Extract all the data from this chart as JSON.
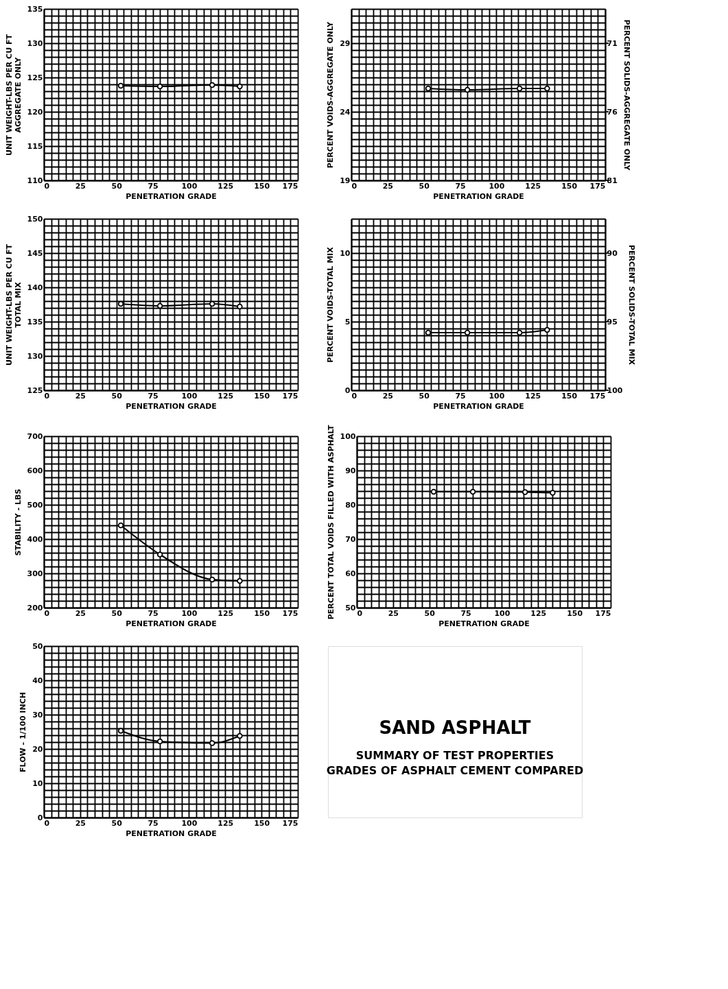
{
  "chart_data": [
    {
      "type": "line",
      "xlabel": "PENETRATION GRADE",
      "ylabel": "UNIT WEIGHT-LBS PER CU FT\nAGGREGATE ONLY",
      "grid": true,
      "marker": "circle",
      "line_style": "solid",
      "xlim": [
        0,
        175
      ],
      "ylim": [
        110,
        135
      ],
      "xticks": [
        0,
        {
          "value": 5,
          "label": null
        },
        {
          "value": 10,
          "label": null
        },
        {
          "value": 15,
          "label": null
        },
        {
          "value": 20,
          "label": null
        },
        25,
        {
          "value": 30,
          "label": null
        },
        {
          "value": 35,
          "label": null
        },
        {
          "value": 40,
          "label": null
        },
        {
          "value": 45,
          "label": null
        },
        50,
        {
          "value": 55,
          "label": null
        },
        {
          "value": 60,
          "label": null
        },
        {
          "value": 65,
          "label": null
        },
        {
          "value": 70,
          "label": null
        },
        75,
        {
          "value": 80,
          "label": null
        },
        {
          "value": 85,
          "label": null
        },
        {
          "value": 90,
          "label": null
        },
        {
          "value": 95,
          "label": null
        },
        100,
        {
          "value": 105,
          "label": null
        },
        {
          "value": 110,
          "label": null
        },
        {
          "value": 115,
          "label": null
        },
        {
          "value": 120,
          "label": null
        },
        125,
        {
          "value": 130,
          "label": null
        },
        {
          "value": 135,
          "label": null
        },
        {
          "value": 140,
          "label": null
        },
        {
          "value": 145,
          "label": null
        },
        150,
        {
          "value": 155,
          "label": null
        },
        {
          "value": 160,
          "label": null
        },
        {
          "value": 165,
          "label": null
        },
        {
          "value": 170,
          "label": null
        },
        175
      ],
      "yticks": [
        110,
        {
          "value": 111,
          "label": null
        },
        {
          "value": 112,
          "label": null
        },
        {
          "value": 113,
          "label": null
        },
        {
          "value": 114,
          "label": null
        },
        115,
        {
          "value": 116,
          "label": null
        },
        {
          "value": 117,
          "label": null
        },
        {
          "value": 118,
          "label": null
        },
        {
          "value": 119,
          "label": null
        },
        120,
        {
          "value": 121,
          "label": null
        },
        {
          "value": 122,
          "label": null
        },
        {
          "value": 123,
          "label": null
        },
        {
          "value": 124,
          "label": null
        },
        125,
        {
          "value": 126,
          "label": null
        },
        {
          "value": 127,
          "label": null
        },
        {
          "value": 128,
          "label": null
        },
        {
          "value": 129,
          "label": null
        },
        130,
        {
          "value": 131,
          "label": null
        },
        {
          "value": 132,
          "label": null
        },
        {
          "value": 133,
          "label": null
        },
        {
          "value": 134,
          "label": null
        },
        135
      ],
      "x": [
        53,
        80,
        116,
        135
      ],
      "series": [
        {
          "color": "#000000",
          "values": [
            123.8,
            123.7,
            123.9,
            123.7
          ]
        }
      ]
    },
    {
      "type": "line",
      "xlabel": "PENETRATION GRADE",
      "ylabel": "PERCENT VOIDS-AGGREGATE ONLY",
      "y2label": "PERCENT SOLIDS-AGGREGATE ONLY",
      "grid": true,
      "marker": "circle",
      "line_style": "solid",
      "xlim": [
        0,
        175
      ],
      "ylim": [
        19,
        31.5
      ],
      "y2lim": [
        81,
        68.5
      ],
      "y2ticks": [
        81,
        76,
        71
      ],
      "xticks": [
        0,
        {
          "value": 5,
          "label": null
        },
        {
          "value": 10,
          "label": null
        },
        {
          "value": 15,
          "label": null
        },
        {
          "value": 20,
          "label": null
        },
        25,
        {
          "value": 30,
          "label": null
        },
        {
          "value": 35,
          "label": null
        },
        {
          "value": 40,
          "label": null
        },
        {
          "value": 45,
          "label": null
        },
        50,
        {
          "value": 55,
          "label": null
        },
        {
          "value": 60,
          "label": null
        },
        {
          "value": 65,
          "label": null
        },
        {
          "value": 70,
          "label": null
        },
        75,
        {
          "value": 80,
          "label": null
        },
        {
          "value": 85,
          "label": null
        },
        {
          "value": 90,
          "label": null
        },
        {
          "value": 95,
          "label": null
        },
        100,
        {
          "value": 105,
          "label": null
        },
        {
          "value": 110,
          "label": null
        },
        {
          "value": 115,
          "label": null
        },
        {
          "value": 120,
          "label": null
        },
        125,
        {
          "value": 130,
          "label": null
        },
        {
          "value": 135,
          "label": null
        },
        {
          "value": 140,
          "label": null
        },
        {
          "value": 145,
          "label": null
        },
        150,
        {
          "value": 155,
          "label": null
        },
        {
          "value": 160,
          "label": null
        },
        {
          "value": 165,
          "label": null
        },
        {
          "value": 170,
          "label": null
        },
        175
      ],
      "yticks": [
        19,
        {
          "value": 19.5,
          "label": null
        },
        {
          "value": 20,
          "label": null
        },
        {
          "value": 20.5,
          "label": null
        },
        {
          "value": 21,
          "label": null
        },
        {
          "value": 21.5,
          "label": null
        },
        {
          "value": 22,
          "label": null
        },
        {
          "value": 22.5,
          "label": null
        },
        {
          "value": 23,
          "label": null
        },
        {
          "value": 23.5,
          "label": null
        },
        24,
        {
          "value": 24.5,
          "label": null
        },
        {
          "value": 25,
          "label": null
        },
        {
          "value": 25.5,
          "label": null
        },
        {
          "value": 26,
          "label": null
        },
        {
          "value": 26.5,
          "label": null
        },
        {
          "value": 27,
          "label": null
        },
        {
          "value": 27.5,
          "label": null
        },
        {
          "value": 28,
          "label": null
        },
        {
          "value": 28.5,
          "label": null
        },
        29,
        {
          "value": 29.5,
          "label": null
        },
        {
          "value": 30,
          "label": null
        },
        {
          "value": 30.5,
          "label": null
        },
        {
          "value": 31,
          "label": null
        },
        {
          "value": 31.5,
          "label": null
        }
      ],
      "x": [
        53,
        80,
        116,
        135
      ],
      "series": [
        {
          "color": "#000000",
          "values": [
            25.7,
            25.6,
            25.7,
            25.7
          ]
        }
      ]
    },
    {
      "type": "line",
      "xlabel": "PENETRATION GRADE",
      "ylabel": "UNIT WEIGHT-LBS PER CU FT\nTOTAL MIX",
      "grid": true,
      "marker": "circle",
      "line_style": "solid",
      "xlim": [
        0,
        175
      ],
      "ylim": [
        125,
        150
      ],
      "xticks": [
        0,
        {
          "value": 5,
          "label": null
        },
        {
          "value": 10,
          "label": null
        },
        {
          "value": 15,
          "label": null
        },
        {
          "value": 20,
          "label": null
        },
        25,
        {
          "value": 30,
          "label": null
        },
        {
          "value": 35,
          "label": null
        },
        {
          "value": 40,
          "label": null
        },
        {
          "value": 45,
          "label": null
        },
        50,
        {
          "value": 55,
          "label": null
        },
        {
          "value": 60,
          "label": null
        },
        {
          "value": 65,
          "label": null
        },
        {
          "value": 70,
          "label": null
        },
        75,
        {
          "value": 80,
          "label": null
        },
        {
          "value": 85,
          "label": null
        },
        {
          "value": 90,
          "label": null
        },
        {
          "value": 95,
          "label": null
        },
        100,
        {
          "value": 105,
          "label": null
        },
        {
          "value": 110,
          "label": null
        },
        {
          "value": 115,
          "label": null
        },
        {
          "value": 120,
          "label": null
        },
        125,
        {
          "value": 130,
          "label": null
        },
        {
          "value": 135,
          "label": null
        },
        {
          "value": 140,
          "label": null
        },
        {
          "value": 145,
          "label": null
        },
        150,
        {
          "value": 155,
          "label": null
        },
        {
          "value": 160,
          "label": null
        },
        {
          "value": 165,
          "label": null
        },
        {
          "value": 170,
          "label": null
        },
        175
      ],
      "yticks": [
        125,
        {
          "value": 126,
          "label": null
        },
        {
          "value": 127,
          "label": null
        },
        {
          "value": 128,
          "label": null
        },
        {
          "value": 129,
          "label": null
        },
        130,
        {
          "value": 131,
          "label": null
        },
        {
          "value": 132,
          "label": null
        },
        {
          "value": 133,
          "label": null
        },
        {
          "value": 134,
          "label": null
        },
        135,
        {
          "value": 136,
          "label": null
        },
        {
          "value": 137,
          "label": null
        },
        {
          "value": 138,
          "label": null
        },
        {
          "value": 139,
          "label": null
        },
        140,
        {
          "value": 141,
          "label": null
        },
        {
          "value": 142,
          "label": null
        },
        {
          "value": 143,
          "label": null
        },
        {
          "value": 144,
          "label": null
        },
        145,
        {
          "value": 146,
          "label": null
        },
        {
          "value": 147,
          "label": null
        },
        {
          "value": 148,
          "label": null
        },
        {
          "value": 149,
          "label": null
        },
        150
      ],
      "x": [
        53,
        80,
        116,
        135
      ],
      "series": [
        {
          "color": "#000000",
          "values": [
            137.6,
            137.3,
            137.6,
            137.2
          ]
        }
      ]
    },
    {
      "type": "line",
      "xlabel": "PENETRATION GRADE",
      "ylabel": "PERCENT VOIDS-TOTAL MIX",
      "y2label": "PERCENT SOLIDS-TOTAL MIX",
      "grid": true,
      "marker": "circle",
      "line_style": "solid",
      "xlim": [
        0,
        175
      ],
      "ylim": [
        0,
        12.5
      ],
      "y2lim": [
        100,
        87.5
      ],
      "y2ticks": [
        100,
        95,
        90
      ],
      "xticks": [
        0,
        {
          "value": 5,
          "label": null
        },
        {
          "value": 10,
          "label": null
        },
        {
          "value": 15,
          "label": null
        },
        {
          "value": 20,
          "label": null
        },
        25,
        {
          "value": 30,
          "label": null
        },
        {
          "value": 35,
          "label": null
        },
        {
          "value": 40,
          "label": null
        },
        {
          "value": 45,
          "label": null
        },
        50,
        {
          "value": 55,
          "label": null
        },
        {
          "value": 60,
          "label": null
        },
        {
          "value": 65,
          "label": null
        },
        {
          "value": 70,
          "label": null
        },
        75,
        {
          "value": 80,
          "label": null
        },
        {
          "value": 85,
          "label": null
        },
        {
          "value": 90,
          "label": null
        },
        {
          "value": 95,
          "label": null
        },
        100,
        {
          "value": 105,
          "label": null
        },
        {
          "value": 110,
          "label": null
        },
        {
          "value": 115,
          "label": null
        },
        {
          "value": 120,
          "label": null
        },
        125,
        {
          "value": 130,
          "label": null
        },
        {
          "value": 135,
          "label": null
        },
        {
          "value": 140,
          "label": null
        },
        {
          "value": 145,
          "label": null
        },
        150,
        {
          "value": 155,
          "label": null
        },
        {
          "value": 160,
          "label": null
        },
        {
          "value": 165,
          "label": null
        },
        {
          "value": 170,
          "label": null
        },
        175
      ],
      "yticks": [
        0,
        {
          "value": 0.5,
          "label": null
        },
        {
          "value": 1,
          "label": null
        },
        {
          "value": 1.5,
          "label": null
        },
        {
          "value": 2,
          "label": null
        },
        {
          "value": 2.5,
          "label": null
        },
        {
          "value": 3,
          "label": null
        },
        {
          "value": 3.5,
          "label": null
        },
        {
          "value": 4,
          "label": null
        },
        {
          "value": 4.5,
          "label": null
        },
        5,
        {
          "value": 5.5,
          "label": null
        },
        {
          "value": 6,
          "label": null
        },
        {
          "value": 6.5,
          "label": null
        },
        {
          "value": 7,
          "label": null
        },
        {
          "value": 7.5,
          "label": null
        },
        {
          "value": 8,
          "label": null
        },
        {
          "value": 8.5,
          "label": null
        },
        {
          "value": 9,
          "label": null
        },
        {
          "value": 9.5,
          "label": null
        },
        10,
        {
          "value": 10.5,
          "label": null
        },
        {
          "value": 11,
          "label": null
        },
        {
          "value": 11.5,
          "label": null
        },
        {
          "value": 12,
          "label": null
        },
        {
          "value": 12.5,
          "label": null
        }
      ],
      "x": [
        53,
        80,
        116,
        135
      ],
      "series": [
        {
          "color": "#000000",
          "values": [
            4.2,
            4.2,
            4.2,
            4.4
          ]
        }
      ]
    },
    {
      "type": "line",
      "xlabel": "PENETRATION GRADE",
      "ylabel": "STABILITY - LBS",
      "grid": true,
      "marker": "circle",
      "line_style": "solid",
      "xlim": [
        0,
        175
      ],
      "ylim": [
        200,
        700
      ],
      "xticks": [
        0,
        {
          "value": 5,
          "label": null
        },
        {
          "value": 10,
          "label": null
        },
        {
          "value": 15,
          "label": null
        },
        {
          "value": 20,
          "label": null
        },
        25,
        {
          "value": 30,
          "label": null
        },
        {
          "value": 35,
          "label": null
        },
        {
          "value": 40,
          "label": null
        },
        {
          "value": 45,
          "label": null
        },
        50,
        {
          "value": 55,
          "label": null
        },
        {
          "value": 60,
          "label": null
        },
        {
          "value": 65,
          "label": null
        },
        {
          "value": 70,
          "label": null
        },
        75,
        {
          "value": 80,
          "label": null
        },
        {
          "value": 85,
          "label": null
        },
        {
          "value": 90,
          "label": null
        },
        {
          "value": 95,
          "label": null
        },
        100,
        {
          "value": 105,
          "label": null
        },
        {
          "value": 110,
          "label": null
        },
        {
          "value": 115,
          "label": null
        },
        {
          "value": 120,
          "label": null
        },
        125,
        {
          "value": 130,
          "label": null
        },
        {
          "value": 135,
          "label": null
        },
        {
          "value": 140,
          "label": null
        },
        {
          "value": 145,
          "label": null
        },
        150,
        {
          "value": 155,
          "label": null
        },
        {
          "value": 160,
          "label": null
        },
        {
          "value": 165,
          "label": null
        },
        {
          "value": 170,
          "label": null
        },
        175
      ],
      "yticks": [
        200,
        {
          "value": 220,
          "label": null
        },
        {
          "value": 240,
          "label": null
        },
        {
          "value": 260,
          "label": null
        },
        {
          "value": 280,
          "label": null
        },
        300,
        {
          "value": 320,
          "label": null
        },
        {
          "value": 340,
          "label": null
        },
        {
          "value": 360,
          "label": null
        },
        {
          "value": 380,
          "label": null
        },
        400,
        {
          "value": 420,
          "label": null
        },
        {
          "value": 440,
          "label": null
        },
        {
          "value": 460,
          "label": null
        },
        {
          "value": 480,
          "label": null
        },
        500,
        {
          "value": 520,
          "label": null
        },
        {
          "value": 540,
          "label": null
        },
        {
          "value": 560,
          "label": null
        },
        {
          "value": 580,
          "label": null
        },
        600,
        {
          "value": 620,
          "label": null
        },
        {
          "value": 640,
          "label": null
        },
        {
          "value": 660,
          "label": null
        },
        {
          "value": 680,
          "label": null
        },
        700
      ],
      "x": [
        53,
        80,
        116,
        135
      ],
      "series": [
        {
          "color": "#000000",
          "values": [
            440,
            355,
            282,
            278
          ]
        }
      ]
    },
    {
      "type": "line",
      "xlabel": "PENETRATION GRADE",
      "ylabel": "PERCENT TOTAL VOIDS FILLED WITH ASPHALT",
      "grid": true,
      "marker": "circle",
      "line_style": "solid",
      "xlim": [
        0,
        175
      ],
      "ylim": [
        50,
        100
      ],
      "xticks": [
        0,
        {
          "value": 5,
          "label": null
        },
        {
          "value": 10,
          "label": null
        },
        {
          "value": 15,
          "label": null
        },
        {
          "value": 20,
          "label": null
        },
        25,
        {
          "value": 30,
          "label": null
        },
        {
          "value": 35,
          "label": null
        },
        {
          "value": 40,
          "label": null
        },
        {
          "value": 45,
          "label": null
        },
        50,
        {
          "value": 55,
          "label": null
        },
        {
          "value": 60,
          "label": null
        },
        {
          "value": 65,
          "label": null
        },
        {
          "value": 70,
          "label": null
        },
        75,
        {
          "value": 80,
          "label": null
        },
        {
          "value": 85,
          "label": null
        },
        {
          "value": 90,
          "label": null
        },
        {
          "value": 95,
          "label": null
        },
        100,
        {
          "value": 105,
          "label": null
        },
        {
          "value": 110,
          "label": null
        },
        {
          "value": 115,
          "label": null
        },
        {
          "value": 120,
          "label": null
        },
        125,
        {
          "value": 130,
          "label": null
        },
        {
          "value": 135,
          "label": null
        },
        {
          "value": 140,
          "label": null
        },
        {
          "value": 145,
          "label": null
        },
        150,
        {
          "value": 155,
          "label": null
        },
        {
          "value": 160,
          "label": null
        },
        {
          "value": 165,
          "label": null
        },
        {
          "value": 170,
          "label": null
        },
        175
      ],
      "yticks": [
        50,
        {
          "value": 52,
          "label": null
        },
        {
          "value": 54,
          "label": null
        },
        {
          "value": 56,
          "label": null
        },
        {
          "value": 58,
          "label": null
        },
        60,
        {
          "value": 62,
          "label": null
        },
        {
          "value": 64,
          "label": null
        },
        {
          "value": 66,
          "label": null
        },
        {
          "value": 68,
          "label": null
        },
        70,
        {
          "value": 72,
          "label": null
        },
        {
          "value": 74,
          "label": null
        },
        {
          "value": 76,
          "label": null
        },
        {
          "value": 78,
          "label": null
        },
        80,
        {
          "value": 82,
          "label": null
        },
        {
          "value": 84,
          "label": null
        },
        {
          "value": 86,
          "label": null
        },
        {
          "value": 88,
          "label": null
        },
        90,
        {
          "value": 92,
          "label": null
        },
        {
          "value": 94,
          "label": null
        },
        {
          "value": 96,
          "label": null
        },
        {
          "value": 98,
          "label": null
        },
        100
      ],
      "x": [
        53,
        80,
        116,
        135
      ],
      "series": [
        {
          "color": "#000000",
          "values": [
            83.8,
            83.8,
            83.7,
            83.5
          ]
        }
      ]
    },
    {
      "type": "line",
      "xlabel": "PENETRATION GRADE",
      "ylabel": "FLOW - 1/100 INCH",
      "grid": true,
      "marker": "circle",
      "line_style": "solid",
      "xlim": [
        0,
        175
      ],
      "ylim": [
        0,
        50
      ],
      "xticks": [
        0,
        {
          "value": 5,
          "label": null
        },
        {
          "value": 10,
          "label": null
        },
        {
          "value": 15,
          "label": null
        },
        {
          "value": 20,
          "label": null
        },
        25,
        {
          "value": 30,
          "label": null
        },
        {
          "value": 35,
          "label": null
        },
        {
          "value": 40,
          "label": null
        },
        {
          "value": 45,
          "label": null
        },
        50,
        {
          "value": 55,
          "label": null
        },
        {
          "value": 60,
          "label": null
        },
        {
          "value": 65,
          "label": null
        },
        {
          "value": 70,
          "label": null
        },
        75,
        {
          "value": 80,
          "label": null
        },
        {
          "value": 85,
          "label": null
        },
        {
          "value": 90,
          "label": null
        },
        {
          "value": 95,
          "label": null
        },
        100,
        {
          "value": 105,
          "label": null
        },
        {
          "value": 110,
          "label": null
        },
        {
          "value": 115,
          "label": null
        },
        {
          "value": 120,
          "label": null
        },
        125,
        {
          "value": 130,
          "label": null
        },
        {
          "value": 135,
          "label": null
        },
        {
          "value": 140,
          "label": null
        },
        {
          "value": 145,
          "label": null
        },
        150,
        {
          "value": 155,
          "label": null
        },
        {
          "value": 160,
          "label": null
        },
        {
          "value": 165,
          "label": null
        },
        {
          "value": 170,
          "label": null
        },
        175
      ],
      "yticks": [
        0,
        {
          "value": 2,
          "label": null
        },
        {
          "value": 4,
          "label": null
        },
        {
          "value": 6,
          "label": null
        },
        {
          "value": 8,
          "label": null
        },
        10,
        {
          "value": 12,
          "label": null
        },
        {
          "value": 14,
          "label": null
        },
        {
          "value": 16,
          "label": null
        },
        {
          "value": 18,
          "label": null
        },
        20,
        {
          "value": 22,
          "label": null
        },
        {
          "value": 24,
          "label": null
        },
        {
          "value": 26,
          "label": null
        },
        {
          "value": 28,
          "label": null
        },
        30,
        {
          "value": 32,
          "label": null
        },
        {
          "value": 34,
          "label": null
        },
        {
          "value": 36,
          "label": null
        },
        {
          "value": 38,
          "label": null
        },
        40,
        {
          "value": 42,
          "label": null
        },
        {
          "value": 44,
          "label": null
        },
        {
          "value": 46,
          "label": null
        },
        {
          "value": 48,
          "label": null
        },
        50
      ],
      "x": [
        53,
        80,
        116,
        135
      ],
      "series": [
        {
          "color": "#000000",
          "values": [
            25.3,
            22.2,
            21.7,
            23.8
          ]
        }
      ]
    },
    {
      "type": "other",
      "title": "SAND ASPHALT",
      "subtitle": "SUMMARY OF TEST PROPERTIES\nGRADES OF ASPHALT CEMENT COMPARED"
    }
  ]
}
